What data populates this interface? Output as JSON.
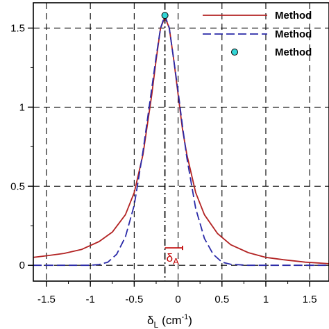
{
  "chart_data": {
    "type": "line",
    "xlabel": "δ",
    "xlabel_sub": "L",
    "xlabel_unit": "(cm",
    "xlabel_unit_sup": "-1",
    "xlabel_unit_close": ")",
    "xlim": [
      -1.65,
      1.72
    ],
    "ylim": [
      -0.1,
      1.66
    ],
    "x_ticks": [
      -1.5,
      -1,
      -0.5,
      0,
      0.5,
      1,
      1.5
    ],
    "x_tick_labels": [
      "-1.5",
      "-1",
      "-0.5",
      "0",
      "0.5",
      "1",
      "1.5"
    ],
    "y_ticks": [
      0,
      0.5,
      1,
      1.5
    ],
    "y_tick_labels": [
      "0",
      "0.5",
      "1",
      "1.5"
    ],
    "grid": true,
    "vertical_marker_x": -0.15,
    "annotation": {
      "text": "δ",
      "sub": "A",
      "bracket_x": [
        -0.15,
        0.05
      ],
      "bracket_y": 0.11
    },
    "legend_position": "top-right",
    "series": [
      {
        "name": "Method",
        "style": "solid",
        "color": "#b22222",
        "x": [
          -1.65,
          -1.5,
          -1.3,
          -1.1,
          -0.9,
          -0.75,
          -0.6,
          -0.5,
          -0.4,
          -0.3,
          -0.25,
          -0.2,
          -0.15,
          -0.1,
          -0.05,
          0.0,
          0.05,
          0.1,
          0.2,
          0.3,
          0.45,
          0.6,
          0.8,
          1.0,
          1.2,
          1.45,
          1.72
        ],
        "y": [
          0.05,
          0.06,
          0.075,
          0.1,
          0.15,
          0.21,
          0.32,
          0.46,
          0.7,
          1.08,
          1.3,
          1.5,
          1.57,
          1.5,
          1.3,
          1.08,
          0.86,
          0.7,
          0.46,
          0.32,
          0.2,
          0.13,
          0.08,
          0.05,
          0.035,
          0.02,
          0.01
        ]
      },
      {
        "name": "Method",
        "style": "dashed",
        "color": "#2a2aa8",
        "x": [
          -1.65,
          -1.2,
          -1.0,
          -0.9,
          -0.8,
          -0.7,
          -0.6,
          -0.5,
          -0.4,
          -0.3,
          -0.25,
          -0.2,
          -0.15,
          -0.1,
          -0.05,
          0.0,
          0.05,
          0.1,
          0.2,
          0.3,
          0.4,
          0.5,
          0.6,
          0.8,
          1.0,
          1.72
        ],
        "y": [
          0.0,
          0.0,
          0.0,
          0.005,
          0.02,
          0.07,
          0.18,
          0.38,
          0.72,
          1.12,
          1.32,
          1.5,
          1.58,
          1.5,
          1.3,
          1.1,
          0.88,
          0.68,
          0.36,
          0.17,
          0.07,
          0.02,
          0.006,
          0.0,
          0.0,
          0.0
        ]
      },
      {
        "name": "Method",
        "style": "marker",
        "color": "#33d6d6",
        "x": [
          -0.15
        ],
        "y": [
          1.58
        ]
      }
    ]
  }
}
